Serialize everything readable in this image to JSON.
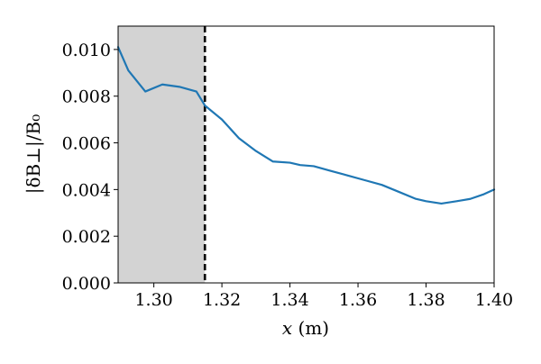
{
  "chart_data": {
    "type": "line",
    "title": "",
    "xlabel_symbol": "x",
    "xlabel_unit": " (m)",
    "ylabel": "|δB⊥|/B₀",
    "xlim": [
      1.2895,
      1.4
    ],
    "ylim": [
      0.0,
      0.011
    ],
    "x_ticks": [
      1.3,
      1.32,
      1.34,
      1.36,
      1.38,
      1.4
    ],
    "x_tick_labels": [
      "1.30",
      "1.32",
      "1.34",
      "1.36",
      "1.38",
      "1.40"
    ],
    "y_ticks": [
      0.0,
      0.002,
      0.004,
      0.006,
      0.008,
      0.01
    ],
    "y_tick_labels": [
      "0.000",
      "0.002",
      "0.004",
      "0.006",
      "0.008",
      "0.010"
    ],
    "grid": false,
    "line_color": "#1f77b4",
    "shaded_region": {
      "x_start": 1.2895,
      "x_end": 1.315,
      "color": "#d3d3d3"
    },
    "vertical_line": {
      "x": 1.315,
      "style": "dashed",
      "color": "#000000"
    },
    "series": [
      {
        "x": [
          1.2895,
          1.2925,
          1.2975,
          1.3025,
          1.3075,
          1.3125,
          1.315,
          1.32,
          1.325,
          1.33,
          1.335,
          1.34,
          1.343,
          1.347,
          1.352,
          1.357,
          1.362,
          1.367,
          1.372,
          1.377,
          1.38,
          1.3845,
          1.389,
          1.393,
          1.397,
          1.4
        ],
        "y": [
          0.0101,
          0.0091,
          0.0082,
          0.0085,
          0.0084,
          0.0082,
          0.0076,
          0.007,
          0.0062,
          0.00565,
          0.0052,
          0.00515,
          0.00505,
          0.005,
          0.0048,
          0.0046,
          0.0044,
          0.0042,
          0.0039,
          0.0036,
          0.0035,
          0.0034,
          0.0035,
          0.0036,
          0.0038,
          0.004
        ]
      }
    ]
  }
}
